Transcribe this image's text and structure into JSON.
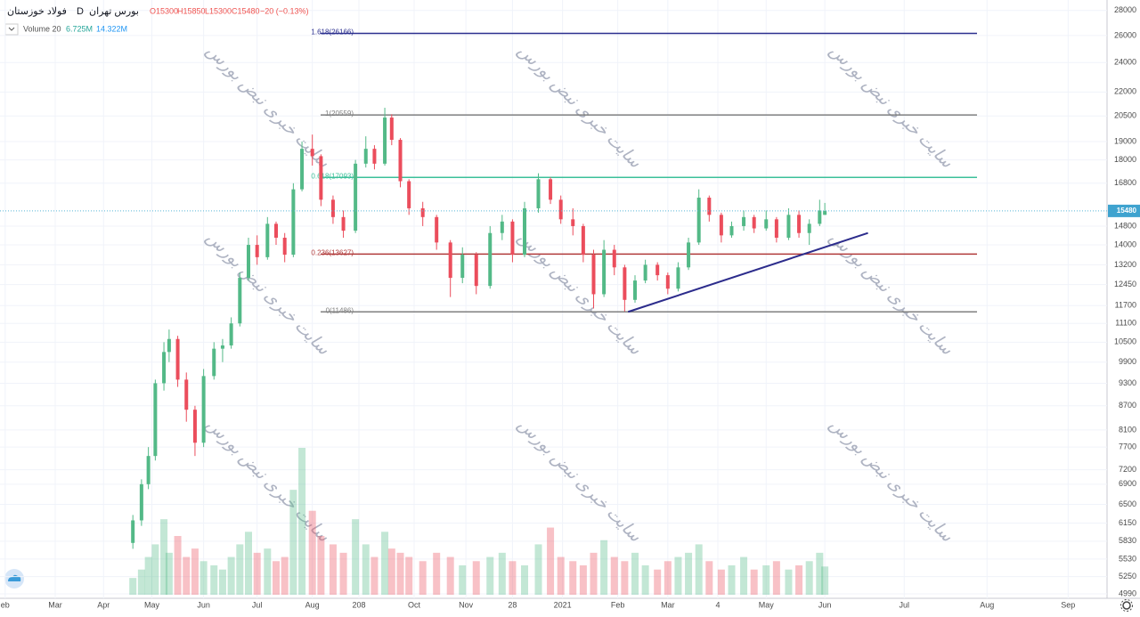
{
  "legend": {
    "symbol": "فولاد خوزستان",
    "interval": "D",
    "exchange": "بورس تهران",
    "open": "O15300",
    "high": "H15850",
    "low": "L15300",
    "close": "C15480",
    "change": "−20 (−0.13%)",
    "volume_label": "Volume 20",
    "volume": "6.725M",
    "volume_ma": "14.322M"
  },
  "chart_data": {
    "type": "candlestick",
    "log_scale": true,
    "grid": true,
    "watermark": "سایت خبری نبض بورس",
    "xlim": [
      0,
      640
    ],
    "xticks": [
      {
        "value": 3,
        "label": "eb"
      },
      {
        "value": 32,
        "label": "Mar"
      },
      {
        "value": 60,
        "label": "Apr"
      },
      {
        "value": 88,
        "label": "May"
      },
      {
        "value": 118,
        "label": "Jun"
      },
      {
        "value": 149,
        "label": "Jul"
      },
      {
        "value": 181,
        "label": "Aug"
      },
      208,
      {
        "value": 240,
        "label": "Oct"
      },
      {
        "value": 270,
        "label": "Nov"
      },
      {
        "value": 297,
        "label": "28"
      },
      {
        "value": 326,
        "label": "2021"
      },
      {
        "value": 358,
        "label": "Feb"
      },
      {
        "value": 387,
        "label": "Mar"
      },
      {
        "value": 416,
        "label": "4"
      },
      {
        "value": 444,
        "label": "May"
      },
      {
        "value": 478,
        "label": "Jun"
      },
      {
        "value": 524,
        "label": "Jul"
      },
      {
        "value": 572,
        "label": "Aug"
      },
      {
        "value": 619,
        "label": "Sep"
      }
    ],
    "ylim": [
      4950,
      28880
    ],
    "yticks": [
      28000,
      26000,
      24000,
      22000,
      20500,
      19000,
      18000,
      16800,
      14800,
      14000,
      13200,
      12450,
      11700,
      11100,
      10500,
      9900,
      9300,
      8700,
      8100,
      7700,
      7200,
      6900,
      6500,
      6150,
      5830,
      5530,
      5250,
      4990
    ],
    "last_price": 15480,
    "up_color": "#53b987",
    "down_color": "#eb4d5c",
    "candles": {
      "x": [
        77,
        82,
        86,
        90,
        95,
        98,
        103,
        108,
        113,
        118,
        124,
        129,
        134,
        139,
        144,
        149,
        155,
        160,
        165,
        170,
        175,
        181,
        186,
        193,
        199,
        206,
        212,
        217,
        223,
        227,
        232,
        237,
        245,
        253,
        261,
        268,
        276,
        284,
        291,
        297,
        304,
        312,
        319,
        325,
        332,
        338,
        344,
        350,
        356,
        362,
        368,
        374,
        381,
        387,
        393,
        399,
        405,
        411,
        418,
        424,
        431,
        437,
        444,
        450,
        457,
        463,
        469,
        475,
        478
      ],
      "open": [
        5800,
        6200,
        6900,
        7500,
        9300,
        10200,
        10600,
        9400,
        8600,
        7800,
        9500,
        10300,
        10400,
        11100,
        12700,
        14000,
        13500,
        14900,
        14300,
        13600,
        16500,
        18600,
        18200,
        16000,
        15200,
        14600,
        17800,
        18600,
        17800,
        20400,
        19100,
        16900,
        15600,
        15200,
        14100,
        12700,
        13600,
        12400,
        14500,
        15000,
        13600,
        15600,
        17000,
        16000,
        15100,
        14800,
        13600,
        12100,
        13800,
        13100,
        11900,
        12600,
        13200,
        12800,
        12300,
        13100,
        14100,
        16100,
        15300,
        14400,
        14800,
        15200,
        14700,
        15100,
        14300,
        15300,
        14500,
        14900,
        15300
      ],
      "high": [
        6300,
        7000,
        7700,
        9400,
        10500,
        10900,
        10700,
        9600,
        8700,
        9700,
        10500,
        10600,
        11300,
        12900,
        14300,
        14400,
        15200,
        15000,
        14500,
        16800,
        19000,
        19400,
        18300,
        16200,
        15500,
        18000,
        19300,
        18800,
        21000,
        20600,
        19200,
        17000,
        15900,
        15300,
        14200,
        13900,
        13700,
        14800,
        15300,
        15100,
        15900,
        17300,
        17100,
        16200,
        15600,
        14900,
        13800,
        14200,
        14000,
        13200,
        12800,
        13400,
        13300,
        12900,
        13300,
        14300,
        16500,
        16200,
        15400,
        15000,
        15500,
        15300,
        15500,
        15200,
        15600,
        15500,
        15100,
        16000,
        15850
      ],
      "low": [
        5700,
        6100,
        6800,
        7400,
        9100,
        9900,
        9200,
        8300,
        7500,
        7700,
        9400,
        9900,
        10300,
        11000,
        12600,
        13200,
        13400,
        14000,
        13300,
        13500,
        16400,
        17700,
        15700,
        14900,
        14300,
        14500,
        17600,
        17500,
        17700,
        18800,
        16600,
        15300,
        14800,
        13800,
        12000,
        12500,
        12100,
        12300,
        14200,
        13300,
        13500,
        15400,
        15800,
        14900,
        14400,
        13300,
        11600,
        12000,
        12800,
        11500,
        11800,
        12500,
        12600,
        12100,
        12200,
        13000,
        14000,
        15000,
        14100,
        14300,
        14600,
        14500,
        14600,
        14100,
        14200,
        14300,
        14000,
        14800,
        15300
      ],
      "close": [
        6200,
        6900,
        7500,
        9300,
        10200,
        10600,
        9400,
        8600,
        7800,
        9500,
        10300,
        10400,
        11100,
        12700,
        14000,
        13500,
        14900,
        14300,
        13600,
        16500,
        18600,
        18200,
        16000,
        15200,
        14600,
        17800,
        18600,
        17800,
        20400,
        19100,
        16900,
        15600,
        15200,
        14100,
        12700,
        13600,
        12400,
        14500,
        15000,
        13600,
        15600,
        17000,
        16000,
        15100,
        14800,
        13600,
        12100,
        13800,
        13100,
        11900,
        12600,
        13200,
        12800,
        12300,
        13100,
        14100,
        16100,
        15300,
        14400,
        14800,
        15200,
        14700,
        15100,
        14300,
        15300,
        14500,
        14900,
        15500,
        15480
      ],
      "volume": [
        4,
        6,
        9,
        12,
        18,
        10,
        14,
        9,
        11,
        8,
        7,
        6,
        9,
        12,
        15,
        10,
        11,
        8,
        9,
        25,
        35,
        20,
        14,
        12,
        10,
        18,
        12,
        9,
        15,
        11,
        10,
        9,
        8,
        10,
        9,
        7,
        8,
        9,
        10,
        8,
        7,
        12,
        16,
        9,
        8,
        7,
        10,
        13,
        9,
        8,
        10,
        7,
        6,
        8,
        9,
        10,
        12,
        8,
        6,
        7,
        9,
        6,
        7,
        8,
        6,
        7,
        8,
        10,
        6.725
      ]
    },
    "fib_levels": [
      {
        "value": 26166,
        "label": "1.618(26166)",
        "color": "#2b2f8f"
      },
      {
        "value": 20559,
        "label": "1(20559)",
        "color": "#808080"
      },
      {
        "value": 17093,
        "label": "0.618(17093)",
        "color": "#3cc09a"
      },
      {
        "value": 13627,
        "label": "0.236(13627)",
        "color": "#b03a3a"
      },
      {
        "value": 11486,
        "label": "0(11486)",
        "color": "#808080"
      }
    ],
    "trendline": {
      "x": [
        364,
        503
      ],
      "y": [
        11486,
        14500
      ],
      "color": "#2c2c8c"
    }
  }
}
